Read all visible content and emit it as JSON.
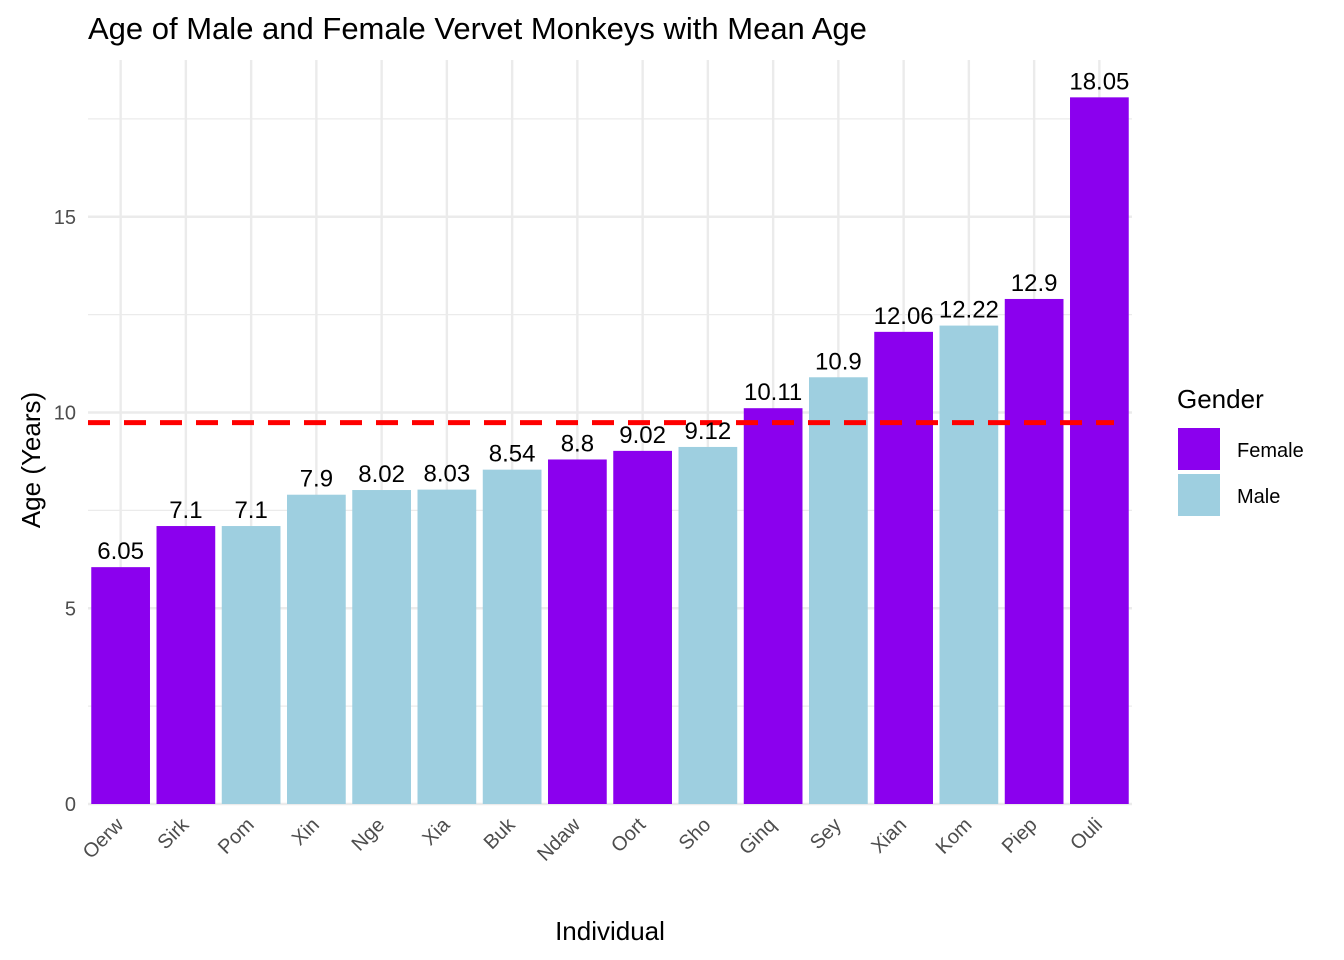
{
  "chart_data": {
    "type": "bar",
    "title": "Age of Male and Female Vervet Monkeys with Mean Age",
    "xlabel": "Individual",
    "ylabel": "Age (Years)",
    "categories": [
      "Oerw",
      "Sirk",
      "Pom",
      "Xin",
      "Nge",
      "Xia",
      "Buk",
      "Ndaw",
      "Oort",
      "Sho",
      "Ginq",
      "Sey",
      "Xian",
      "Kom",
      "Piep",
      "Ouli"
    ],
    "values": [
      6.05,
      7.1,
      7.1,
      7.9,
      8.02,
      8.03,
      8.54,
      8.8,
      9.02,
      9.12,
      10.11,
      10.9,
      12.06,
      12.22,
      12.9,
      18.05
    ],
    "value_labels": [
      "6.05",
      "7.1",
      "7.1",
      "7.9",
      "8.02",
      "8.03",
      "8.54",
      "8.8",
      "9.02",
      "9.12",
      "10.11",
      "10.9",
      "12.06",
      "12.22",
      "12.9",
      "18.05"
    ],
    "gender": [
      "Female",
      "Female",
      "Male",
      "Male",
      "Male",
      "Male",
      "Male",
      "Female",
      "Female",
      "Male",
      "Female",
      "Male",
      "Female",
      "Male",
      "Female",
      "Female"
    ],
    "mean_age": 9.74,
    "mean_line_color": "#ff0000",
    "ylim": [
      0,
      18.5
    ],
    "y_ticks": [
      0,
      5,
      10,
      15
    ],
    "y_tick_labels": [
      "0",
      "5",
      "10",
      "15"
    ],
    "grid": true,
    "legend": {
      "title": "Gender",
      "position": "right",
      "entries": [
        {
          "label": "Female",
          "color": "#8b00ee"
        },
        {
          "label": "Male",
          "color": "#9ecfe0"
        }
      ]
    },
    "colors": {
      "Female": "#8b00ee",
      "Male": "#9ecfe0",
      "grid": "#ebebeb"
    }
  }
}
